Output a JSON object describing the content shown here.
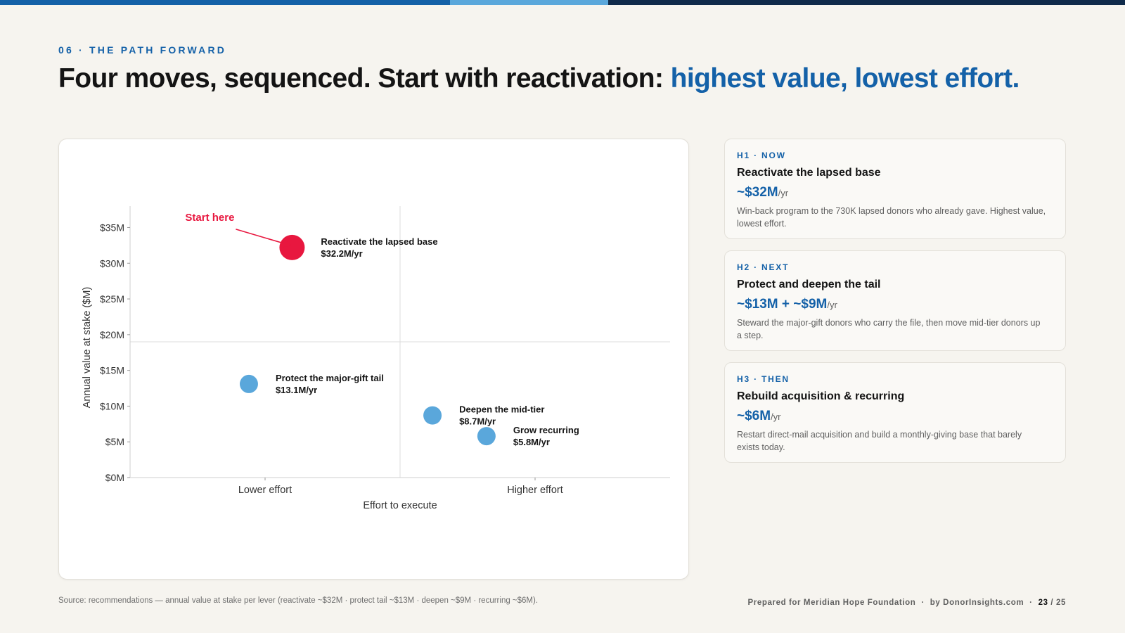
{
  "slide": {
    "eyebrow": "06 · THE PATH FORWARD",
    "headline_main": "Four moves, sequenced. Start with reactivation: ",
    "headline_highlight": "highest value, lowest effort.",
    "source": "Source: recommendations — annual value at stake per lever (reactivate ~$32M · protect tail ~$13M · deepen ~$9M · recurring ~$6M).",
    "footer_prepared": "Prepared for Meridian Hope Foundation",
    "footer_by": "by DonorInsights.com",
    "page_current": "23",
    "page_sep": "/",
    "page_total": "25"
  },
  "colors": {
    "accent_blue": "#1461a8",
    "light_blue": "#5aa7db",
    "navy": "#0f2a4a",
    "highlight_red": "#e8173f"
  },
  "chart_data": {
    "type": "scatter",
    "xlabel": "Effort to execute",
    "ylabel": "Annual value at stake ($M)",
    "x_ticks": [
      {
        "value": 1,
        "label": "Lower effort"
      },
      {
        "value": 3,
        "label": "Higher effort"
      }
    ],
    "xlim": [
      0,
      4
    ],
    "y_ticks": [
      {
        "value": 0,
        "label": "$0M"
      },
      {
        "value": 5,
        "label": "$5M"
      },
      {
        "value": 10,
        "label": "$10M"
      },
      {
        "value": 15,
        "label": "$15M"
      },
      {
        "value": 20,
        "label": "$20M"
      },
      {
        "value": 25,
        "label": "$25M"
      },
      {
        "value": 30,
        "label": "$30M"
      },
      {
        "value": 35,
        "label": "$35M"
      }
    ],
    "ylim": [
      0,
      38
    ],
    "quadrant_lines": {
      "x": 2,
      "y": 19
    },
    "points": [
      {
        "name": "Reactivate the lapsed base",
        "value_label": "$32.2M/yr",
        "x": 1.2,
        "y": 32.2,
        "color": "#e8173f",
        "highlight": true
      },
      {
        "name": "Protect the major-gift tail",
        "value_label": "$13.1M/yr",
        "x": 0.88,
        "y": 13.1,
        "color": "#5aa7db",
        "highlight": false
      },
      {
        "name": "Deepen the mid-tier",
        "value_label": "$8.7M/yr",
        "x": 2.24,
        "y": 8.7,
        "color": "#5aa7db",
        "highlight": false
      },
      {
        "name": "Grow recurring",
        "value_label": "$5.8M/yr",
        "x": 2.64,
        "y": 5.8,
        "color": "#5aa7db",
        "highlight": false
      }
    ],
    "annotation": {
      "text": "Start here"
    }
  },
  "horizons": [
    {
      "tag": "H1 · NOW",
      "title": "Reactivate the lapsed base",
      "value": "~$32M",
      "unit": "/yr",
      "desc": "Win-back program to the 730K lapsed donors who already gave. Highest value, lowest effort."
    },
    {
      "tag": "H2 · NEXT",
      "title": "Protect and deepen the tail",
      "value": "~$13M + ~$9M",
      "unit": "/yr",
      "desc": "Steward the major-gift donors who carry the file, then move mid-tier donors up a step."
    },
    {
      "tag": "H3 · THEN",
      "title": "Rebuild acquisition & recurring",
      "value": "~$6M",
      "unit": "/yr",
      "desc": "Restart direct-mail acquisition and build a monthly-giving base that barely exists today."
    }
  ]
}
